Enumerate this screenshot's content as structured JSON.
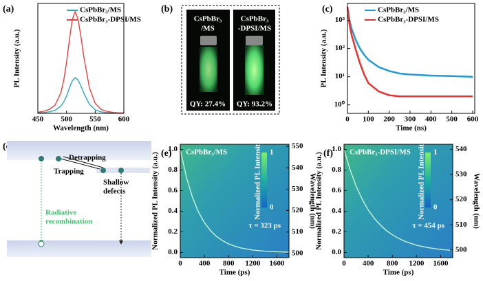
{
  "chart_data": [
    {
      "type": "line",
      "panel": "(a)",
      "xlabel": "Wavelength (nm)",
      "ylabel": "PL Intensity (a.u.)",
      "x": [
        450,
        460,
        470,
        480,
        490,
        495,
        500,
        505,
        510,
        515,
        520,
        525,
        530,
        540,
        550,
        560,
        570,
        580,
        590,
        600
      ],
      "xlim": [
        450,
        600
      ],
      "xticks": [
        450,
        500,
        550,
        600
      ],
      "ylim": [
        0,
        1.08
      ],
      "legend": "upper right",
      "series": [
        {
          "name": "CsPbBr₃/MS",
          "color": "#2aa7b8",
          "values": [
            0.005,
            0.008,
            0.015,
            0.03,
            0.07,
            0.11,
            0.17,
            0.25,
            0.32,
            0.35,
            0.33,
            0.27,
            0.2,
            0.09,
            0.035,
            0.015,
            0.008,
            0.004,
            0.003,
            0.002
          ]
        },
        {
          "name": "CsPbBr₃-DPSI/MS",
          "color": "#e8413e",
          "values": [
            0.01,
            0.02,
            0.04,
            0.08,
            0.2,
            0.32,
            0.5,
            0.72,
            0.92,
            1.0,
            0.93,
            0.76,
            0.56,
            0.25,
            0.1,
            0.04,
            0.02,
            0.01,
            0.005,
            0.005
          ]
        }
      ]
    },
    {
      "type": "photo",
      "panel": "(b)",
      "samples": [
        {
          "lines": [
            "CsPbBr₃",
            "/MS"
          ],
          "qy": "QY: 27.4%"
        },
        {
          "lines": [
            "CsPbBr₃",
            "-DPSI/MS"
          ],
          "qy": "QY: 93.2%"
        }
      ]
    },
    {
      "type": "line",
      "panel": "(c)",
      "xlabel": "Time (ns)",
      "ylabel": "PL Intensity (a.u.)",
      "log_y": true,
      "x": [
        0,
        10,
        20,
        40,
        60,
        80,
        100,
        150,
        200,
        250,
        300,
        400,
        500,
        600
      ],
      "xlim": [
        0,
        610
      ],
      "xticks": [
        0,
        100,
        200,
        300,
        400,
        500,
        600
      ],
      "ylim": [
        0.5,
        4000
      ],
      "yticks": [
        {
          "value": 1,
          "label": "10⁰"
        },
        {
          "value": 10,
          "label": "10¹"
        },
        {
          "value": 100,
          "label": "10²"
        },
        {
          "value": 1000,
          "label": "10³"
        }
      ],
      "legend": "upper right",
      "series": [
        {
          "name": "CsPbBr₃/MS",
          "color": "#1f9ad6",
          "values": [
            3000,
            1000,
            500,
            200,
            100,
            60,
            40,
            22,
            16,
            13,
            12,
            11,
            10.5,
            10
          ]
        },
        {
          "name": "CsPbBr₃-DPSI/MS",
          "color": "#e8322e",
          "values": [
            3000,
            700,
            300,
            90,
            30,
            12,
            6,
            3,
            2.2,
            2,
            2,
            2,
            2,
            2
          ]
        }
      ]
    },
    {
      "type": "diagram",
      "panel": "(d)",
      "labels": {
        "detrapping": "Detrapping",
        "trapping": "Trapping",
        "shallow": [
          "Shallow",
          "defects"
        ],
        "radiative": [
          "Radiative",
          "recombination"
        ]
      }
    },
    {
      "type": "line",
      "panel": "(e)",
      "title": "CsPbBr₃/MS",
      "annotation": "τ = 323 ps",
      "xlabel": "Time (ps)",
      "ylabel": "Normalized PL Intensity (a.u.)",
      "y2label": "Wavelength (nm)",
      "x": [
        0,
        100,
        200,
        300,
        400,
        500,
        600,
        700,
        800,
        900,
        1000,
        1200,
        1400,
        1600,
        1800
      ],
      "xlim": [
        0,
        1800
      ],
      "xticks": [
        0,
        400,
        800,
        1200,
        1600
      ],
      "ylim": [
        -0.05,
        1.05
      ],
      "yticks": [
        {
          "value": 0,
          "label": "0.0"
        },
        0.2,
        0.4,
        0.6,
        0.8,
        {
          "value": 1,
          "label": "1.0"
        }
      ],
      "y2lim": [
        498,
        551
      ],
      "y2ticks": [
        500,
        510,
        520,
        530,
        540,
        550
      ],
      "colorbar": {
        "title": "Normalized PL Intensity",
        "ticks": [
          1,
          0
        ]
      },
      "series": [
        {
          "color": "#c8f5d8",
          "values": [
            1.0,
            0.734,
            0.538,
            0.395,
            0.29,
            0.213,
            0.156,
            0.115,
            0.084,
            0.062,
            0.045,
            0.024,
            0.013,
            0.007,
            0.004
          ]
        }
      ]
    },
    {
      "type": "line",
      "panel": "(f)",
      "title": "CsPbBr₃-DPSI/MS",
      "annotation": "τ = 454 ps",
      "xlabel": "Time (ps)",
      "ylabel": "Normalized PL Intensity (a.u.)",
      "y2label": "Wavelength (nm)",
      "x": [
        0,
        100,
        200,
        300,
        400,
        500,
        600,
        700,
        800,
        900,
        1000,
        1200,
        1400,
        1600,
        1800
      ],
      "xlim": [
        0,
        1800
      ],
      "xticks": [
        0,
        400,
        800,
        1200,
        1600
      ],
      "ylim": [
        -0.05,
        1.05
      ],
      "yticks": [
        {
          "value": 0,
          "label": "0.0"
        },
        0.2,
        0.4,
        0.6,
        0.8,
        {
          "value": 1,
          "label": "1.0"
        }
      ],
      "y2lim": [
        497,
        542
      ],
      "y2ticks": [
        500,
        510,
        520,
        530,
        540
      ],
      "colorbar": {
        "title": "Normalized PL Intensity",
        "ticks": [
          1,
          0
        ]
      },
      "series": [
        {
          "color": "#c8f5d8",
          "values": [
            1.0,
            0.802,
            0.644,
            0.517,
            0.414,
            0.332,
            0.267,
            0.214,
            0.172,
            0.138,
            0.11,
            0.071,
            0.046,
            0.029,
            0.019
          ]
        }
      ]
    }
  ]
}
